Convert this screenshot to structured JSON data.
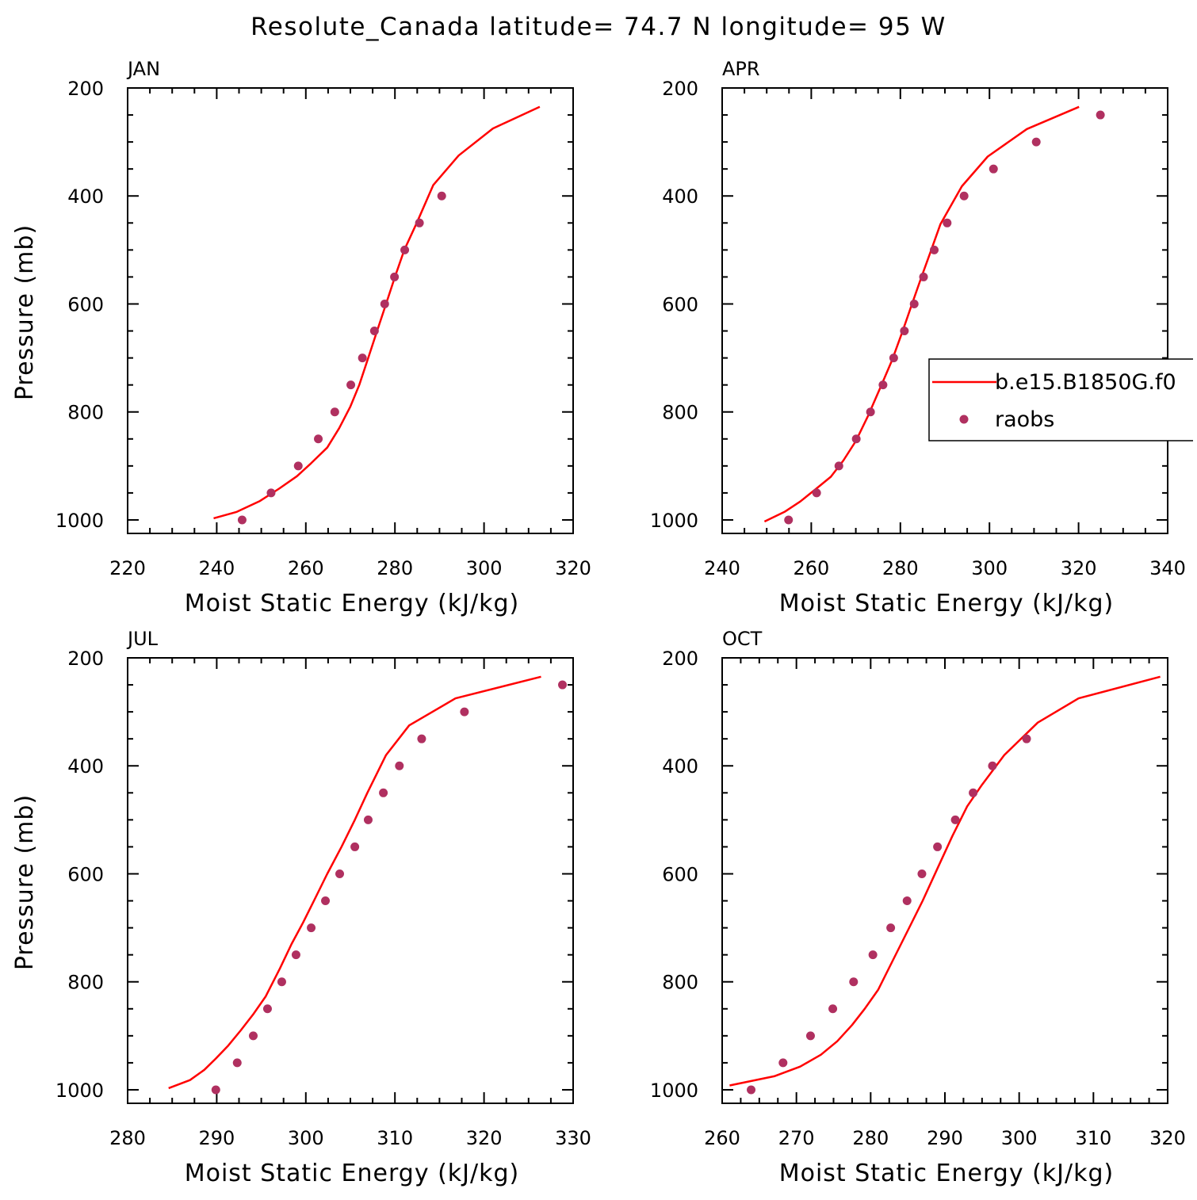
{
  "title": "Resolute_Canada  latitude= 74.7 N longitude= 95 W",
  "legend": {
    "entries": [
      {
        "label": "b.e15.B1850G.f0",
        "type": "line",
        "color": "#ff0000"
      },
      {
        "label": "raobs",
        "type": "marker",
        "color": "#b03060"
      }
    ],
    "placement": "right, over APR panel"
  },
  "chart_data": [
    {
      "type": "line",
      "panel": "JAN",
      "xlabel": "Moist Static Energy (kJ/kg)",
      "ylabel": "Pressure (mb)",
      "xlim": [
        220,
        320
      ],
      "ylim": [
        1025,
        200
      ],
      "xticks": [
        220,
        240,
        260,
        280,
        300,
        320
      ],
      "yticks": [
        200,
        400,
        600,
        800,
        1000
      ],
      "series": [
        {
          "name": "b.e15.B1850G.f0",
          "style": "line",
          "color": "#ff0000",
          "x": [
            239.3,
            244.5,
            249.7,
            254.0,
            258.0,
            261.2,
            264.8,
            267.5,
            270.0,
            272.0,
            274.0,
            276.0,
            278.0,
            280.0,
            282.1,
            284.9,
            288.6,
            294.3,
            302.0,
            312.5
          ],
          "y": [
            997,
            985,
            965,
            942,
            919,
            895,
            866,
            830,
            790,
            750,
            700,
            650,
            600,
            550,
            500,
            450,
            380,
            325,
            275,
            235
          ]
        },
        {
          "name": "raobs",
          "style": "scatter",
          "color": "#b03060",
          "x": [
            245.7,
            252.2,
            258.3,
            262.8,
            266.5,
            270.1,
            272.7,
            275.4,
            277.7,
            279.9,
            282.2,
            285.5,
            290.5
          ],
          "y": [
            1000,
            950,
            900,
            850,
            800,
            750,
            700,
            650,
            600,
            550,
            500,
            450,
            400
          ]
        }
      ]
    },
    {
      "type": "line",
      "panel": "APR",
      "xlabel": "Moist Static Energy (kJ/kg)",
      "ylabel": "",
      "xlim": [
        240,
        340
      ],
      "ylim": [
        1025,
        200
      ],
      "xticks": [
        240,
        260,
        280,
        300,
        320,
        340
      ],
      "yticks": [
        200,
        400,
        600,
        800,
        1000
      ],
      "series": [
        {
          "name": "b.e15.B1850G.f0",
          "style": "line",
          "color": "#ff0000",
          "x": [
            249.5,
            254.0,
            257.5,
            261.0,
            264.4,
            267.2,
            270.0,
            272.7,
            275.5,
            278.1,
            280.4,
            282.5,
            284.6,
            286.8,
            289.0,
            293.8,
            299.6,
            308.4,
            320.1
          ],
          "y": [
            1003,
            985,
            966,
            943,
            920,
            890,
            854,
            808,
            755,
            705,
            653,
            603,
            553,
            503,
            452,
            382,
            327,
            276,
            235
          ]
        },
        {
          "name": "raobs",
          "style": "scatter",
          "color": "#b03060",
          "x": [
            254.9,
            261.2,
            266.2,
            270.1,
            273.3,
            276.1,
            278.5,
            280.9,
            283.1,
            285.2,
            287.6,
            290.5,
            294.3,
            300.9,
            310.5,
            324.9
          ],
          "y": [
            1000,
            950,
            900,
            850,
            800,
            750,
            700,
            650,
            600,
            550,
            500,
            450,
            400,
            350,
            300,
            250
          ]
        }
      ]
    },
    {
      "type": "line",
      "panel": "JUL",
      "xlabel": "Moist Static Energy (kJ/kg)",
      "ylabel": "Pressure (mb)",
      "xlim": [
        280,
        330
      ],
      "ylim": [
        1025,
        200
      ],
      "xticks": [
        280,
        290,
        300,
        310,
        320,
        330
      ],
      "yticks": [
        200,
        400,
        600,
        800,
        1000
      ],
      "series": [
        {
          "name": "b.e15.B1850G.f0",
          "style": "line",
          "color": "#ff0000",
          "x": [
            284.6,
            287.0,
            288.6,
            289.9,
            291.3,
            292.7,
            294.1,
            295.5,
            297.1,
            298.4,
            299.7,
            301.0,
            302.4,
            304.0,
            305.5,
            306.9,
            309.0,
            311.6,
            316.8,
            326.4
          ],
          "y": [
            997,
            982,
            963,
            942,
            918,
            890,
            860,
            827,
            775,
            730,
            690,
            647,
            600,
            550,
            500,
            450,
            380,
            325,
            275,
            235
          ]
        },
        {
          "name": "raobs",
          "style": "scatter",
          "color": "#b03060",
          "x": [
            289.9,
            292.3,
            294.1,
            295.7,
            297.3,
            298.9,
            300.6,
            302.2,
            303.8,
            305.5,
            307.0,
            308.7,
            310.5,
            313.0,
            317.8,
            328.8
          ],
          "y": [
            1000,
            950,
            900,
            850,
            800,
            750,
            700,
            650,
            600,
            550,
            500,
            450,
            400,
            350,
            300,
            250
          ]
        }
      ]
    },
    {
      "type": "line",
      "panel": "OCT",
      "xlabel": "Moist Static Energy (kJ/kg)",
      "ylabel": "",
      "xlim": [
        260,
        320
      ],
      "ylim": [
        1025,
        200
      ],
      "xticks": [
        260,
        270,
        280,
        290,
        300,
        310,
        320
      ],
      "yticks": [
        200,
        400,
        600,
        800,
        1000
      ],
      "series": [
        {
          "name": "b.e15.B1850G.f0",
          "style": "line",
          "color": "#ff0000",
          "x": [
            261.0,
            267.0,
            270.5,
            273.3,
            275.5,
            277.5,
            279.2,
            281.0,
            283.0,
            285.0,
            287.0,
            289.0,
            291.0,
            293.0,
            295.0,
            298.0,
            302.5,
            308.0,
            319.0
          ],
          "y": [
            992,
            975,
            957,
            935,
            910,
            880,
            850,
            815,
            760,
            705,
            650,
            590,
            530,
            475,
            435,
            380,
            320,
            275,
            235
          ]
        },
        {
          "name": "raobs",
          "style": "scatter",
          "color": "#b03060",
          "x": [
            263.9,
            268.2,
            271.9,
            274.9,
            277.7,
            280.3,
            282.7,
            284.9,
            286.9,
            289.0,
            291.4,
            293.8,
            296.4,
            301.0
          ],
          "y": [
            1000,
            950,
            900,
            850,
            800,
            750,
            700,
            650,
            600,
            550,
            500,
            450,
            400,
            350
          ]
        }
      ]
    }
  ]
}
